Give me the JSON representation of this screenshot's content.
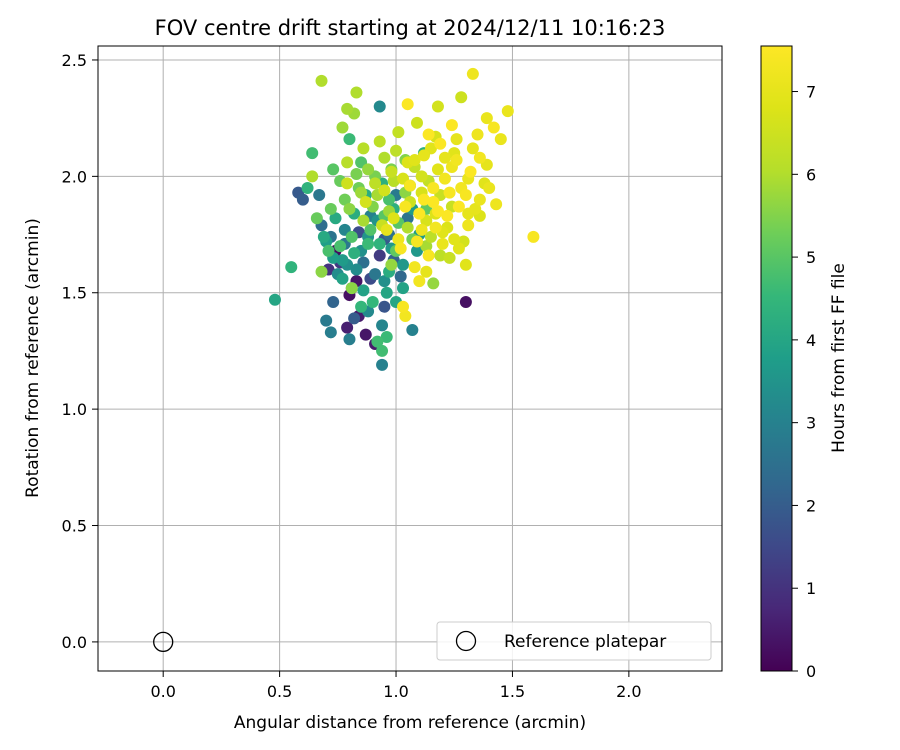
{
  "chart_data": {
    "type": "scatter",
    "title": "FOV centre drift starting at 2024/12/11 10:16:23",
    "xlabel": "Angular distance from reference (arcmin)",
    "ylabel": "Rotation from reference (arcmin)",
    "xlim": [
      -0.28,
      2.4
    ],
    "ylim": [
      -0.125,
      2.56
    ],
    "xticks": [
      "0.0",
      "0.5",
      "1.0",
      "1.5",
      "2.0"
    ],
    "yticks": [
      "0.0",
      "0.5",
      "1.0",
      "1.5",
      "2.0",
      "2.5"
    ],
    "grid": true,
    "legend": {
      "location": "lower-right",
      "entries": [
        "Reference platepar"
      ]
    },
    "colorbar": {
      "label": "Hours from first FF file",
      "colormap": "viridis",
      "min": 0,
      "max": 7.55,
      "ticks": [
        "0",
        "1",
        "2",
        "3",
        "4",
        "5",
        "6",
        "7"
      ]
    },
    "reference_point": {
      "x": 0.0,
      "y": 0.0
    },
    "series": [
      {
        "points": [
          [
            0.74,
            1.68,
            0.2
          ],
          [
            0.8,
            1.49,
            0.3
          ],
          [
            0.83,
            1.55,
            0.4
          ],
          [
            0.87,
            1.32,
            0.4
          ],
          [
            0.91,
            1.28,
            0.5
          ],
          [
            0.84,
            1.4,
            0.5
          ],
          [
            1.3,
            1.46,
            0.3
          ],
          [
            0.79,
            1.35,
            0.6
          ],
          [
            0.71,
            1.6,
            1.0
          ],
          [
            0.76,
            1.63,
            1.2
          ],
          [
            0.84,
            1.76,
            1.6
          ],
          [
            0.93,
            1.66,
            1.2
          ],
          [
            0.89,
            1.56,
            1.6
          ],
          [
            0.95,
            1.44,
            1.8
          ],
          [
            0.6,
            1.9,
            2.0
          ],
          [
            0.58,
            1.93,
            1.9
          ],
          [
            0.73,
            1.46,
            2.2
          ],
          [
            0.82,
            1.39,
            2.0
          ],
          [
            0.81,
            1.52,
            1.8
          ],
          [
            0.95,
            1.73,
            1.9
          ],
          [
            0.99,
            1.64,
            2.1
          ],
          [
            1.02,
            1.57,
            2.3
          ],
          [
            0.68,
            1.79,
            2.4
          ],
          [
            0.72,
            1.74,
            2.6
          ],
          [
            0.78,
            1.71,
            2.7
          ],
          [
            0.86,
            1.63,
            2.5
          ],
          [
            0.91,
            1.58,
            2.7
          ],
          [
            0.97,
            1.75,
            2.5
          ],
          [
            1.05,
            1.82,
            2.6
          ],
          [
            1.0,
            1.92,
            2.8
          ],
          [
            0.67,
            1.92,
            2.7
          ],
          [
            0.7,
            1.38,
            2.8
          ],
          [
            0.72,
            1.33,
            2.9
          ],
          [
            0.8,
            1.3,
            2.9
          ],
          [
            0.94,
            1.19,
            3.0
          ],
          [
            1.07,
            1.34,
            3.0
          ],
          [
            0.94,
            1.36,
            3.1
          ],
          [
            0.88,
            1.42,
            3.2
          ],
          [
            0.93,
            2.3,
            3.2
          ],
          [
            0.75,
            1.58,
            3.3
          ],
          [
            0.79,
            1.62,
            3.4
          ],
          [
            0.85,
            1.68,
            3.4
          ],
          [
            0.88,
            1.74,
            3.5
          ],
          [
            0.92,
            1.81,
            3.5
          ],
          [
            0.98,
            1.69,
            3.6
          ],
          [
            1.03,
            1.62,
            3.6
          ],
          [
            1.07,
            1.86,
            3.7
          ],
          [
            1.1,
            1.75,
            3.7
          ],
          [
            0.7,
            1.72,
            3.8
          ],
          [
            0.73,
            1.65,
            3.8
          ],
          [
            0.77,
            1.56,
            3.9
          ],
          [
            0.86,
            1.51,
            3.9
          ],
          [
            0.96,
            1.5,
            4.0
          ],
          [
            1.0,
            1.46,
            4.0
          ],
          [
            0.69,
            1.74,
            4.1
          ],
          [
            0.74,
            1.82,
            4.1
          ],
          [
            0.82,
            1.84,
            4.2
          ],
          [
            0.87,
            1.92,
            4.2
          ],
          [
            0.94,
            1.97,
            4.3
          ],
          [
            0.99,
            1.86,
            4.3
          ],
          [
            1.12,
            2.1,
            4.3
          ],
          [
            0.55,
            1.61,
            4.4
          ],
          [
            0.48,
            1.47,
            4.0
          ],
          [
            0.62,
            1.95,
            4.4
          ],
          [
            0.85,
            1.44,
            4.5
          ],
          [
            0.9,
            1.46,
            4.5
          ],
          [
            0.96,
            1.31,
            4.6
          ],
          [
            0.94,
            1.25,
            4.7
          ],
          [
            0.92,
            1.29,
            4.7
          ],
          [
            0.8,
            2.16,
            4.6
          ],
          [
            0.64,
            2.1,
            4.7
          ],
          [
            0.71,
            1.68,
            4.8
          ],
          [
            0.76,
            1.7,
            4.8
          ],
          [
            0.81,
            1.74,
            4.9
          ],
          [
            0.89,
            1.77,
            4.9
          ],
          [
            0.95,
            1.83,
            5.0
          ],
          [
            1.01,
            1.8,
            5.0
          ],
          [
            1.06,
            1.96,
            5.1
          ],
          [
            1.13,
            1.86,
            5.1
          ],
          [
            0.66,
            1.82,
            5.2
          ],
          [
            0.72,
            1.86,
            5.2
          ],
          [
            0.78,
            1.9,
            5.3
          ],
          [
            0.84,
            1.95,
            5.3
          ],
          [
            0.91,
            2.0,
            5.4
          ],
          [
            0.98,
            2.03,
            5.4
          ],
          [
            1.04,
            2.07,
            5.5
          ],
          [
            0.68,
            1.59,
            5.6
          ],
          [
            0.81,
            1.52,
            5.6
          ],
          [
            0.98,
            1.62,
            5.7
          ],
          [
            1.16,
            1.54,
            5.7
          ],
          [
            0.77,
            2.21,
            5.8
          ],
          [
            0.82,
            2.27,
            5.8
          ],
          [
            0.79,
            2.29,
            5.9
          ],
          [
            0.83,
            2.36,
            6.0
          ],
          [
            0.68,
            2.41,
            6.0
          ],
          [
            0.64,
            2.0,
            6.0
          ],
          [
            0.79,
            2.06,
            6.1
          ],
          [
            0.86,
            2.12,
            6.1
          ],
          [
            0.93,
            2.15,
            6.2
          ],
          [
            1.0,
            2.11,
            6.2
          ],
          [
            1.08,
            2.04,
            6.3
          ],
          [
            1.14,
            1.98,
            6.3
          ],
          [
            1.19,
            1.92,
            6.4
          ],
          [
            1.24,
            1.87,
            6.4
          ],
          [
            1.28,
            2.34,
            6.5
          ],
          [
            1.18,
            2.3,
            6.6
          ],
          [
            0.79,
            1.97,
            6.5
          ],
          [
            0.87,
            1.89,
            6.6
          ],
          [
            0.95,
            1.94,
            6.6
          ],
          [
            1.03,
            1.99,
            6.7
          ],
          [
            1.11,
            1.93,
            6.7
          ],
          [
            1.17,
            1.84,
            6.8
          ],
          [
            1.22,
            1.78,
            6.8
          ],
          [
            1.3,
            1.62,
            6.9
          ],
          [
            1.27,
            1.69,
            6.9
          ],
          [
            1.21,
            2.08,
            7.0
          ],
          [
            1.26,
            2.16,
            7.0
          ],
          [
            1.33,
            2.12,
            7.0
          ],
          [
            1.39,
            2.05,
            7.0
          ],
          [
            1.45,
            2.16,
            7.1
          ],
          [
            1.48,
            2.28,
            7.1
          ],
          [
            1.39,
            2.25,
            7.1
          ],
          [
            1.33,
            2.44,
            7.2
          ],
          [
            1.36,
            1.9,
            7.1
          ],
          [
            1.4,
            1.95,
            7.1
          ],
          [
            1.43,
            1.88,
            7.2
          ],
          [
            1.31,
            1.79,
            7.2
          ],
          [
            1.04,
            1.4,
            7.3
          ],
          [
            1.03,
            1.44,
            7.4
          ],
          [
            1.59,
            1.74,
            7.4
          ],
          [
            1.05,
            2.31,
            7.5
          ],
          [
            1.14,
            2.18,
            7.5
          ],
          [
            1.19,
            2.14,
            7.5
          ],
          [
            1.24,
            2.22,
            7.5
          ],
          [
            1.32,
            2.02,
            7.5
          ],
          [
            1.06,
            1.96,
            7.4
          ],
          [
            1.12,
            1.9,
            7.5
          ],
          [
            1.18,
            1.85,
            7.5
          ],
          [
            1.09,
            1.72,
            7.4
          ],
          [
            1.14,
            1.66,
            7.4
          ],
          [
            1.02,
            1.69,
            7.4
          ],
          [
            1.08,
            1.61,
            7.3
          ],
          [
            1.1,
            1.55,
            7.3
          ],
          [
            1.01,
            1.73,
            7.2
          ],
          [
            0.96,
            1.77,
            7.0
          ],
          [
            1.08,
            2.07,
            6.9
          ],
          [
            1.15,
            2.12,
            6.9
          ],
          [
            1.24,
            2.04,
            7.2
          ],
          [
            1.28,
            1.95,
            7.3
          ],
          [
            1.34,
            1.86,
            7.0
          ],
          [
            1.2,
            1.71,
            7.1
          ],
          [
            1.13,
            1.59,
            7.0
          ],
          [
            0.92,
            1.92,
            5.9
          ],
          [
            0.99,
            1.98,
            6.1
          ],
          [
            1.06,
            1.89,
            6.5
          ],
          [
            1.13,
            1.81,
            6.7
          ],
          [
            1.2,
            1.76,
            6.9
          ],
          [
            0.88,
            2.03,
            5.7
          ],
          [
            0.95,
            2.08,
            6.0
          ],
          [
            1.01,
            2.19,
            6.3
          ],
          [
            1.09,
            2.23,
            6.5
          ],
          [
            1.17,
            2.17,
            6.7
          ],
          [
            1.25,
            2.1,
            6.9
          ],
          [
            1.31,
            1.99,
            7.1
          ],
          [
            1.36,
            1.83,
            6.8
          ],
          [
            1.29,
            1.72,
            6.6
          ],
          [
            1.23,
            1.65,
            6.4
          ],
          [
            1.15,
            1.74,
            6.2
          ],
          [
            1.05,
            1.78,
            6.0
          ],
          [
            0.97,
            1.85,
            5.8
          ],
          [
            0.9,
            1.87,
            5.5
          ],
          [
            0.83,
            2.01,
            5.4
          ],
          [
            0.76,
            1.98,
            5.2
          ],
          [
            0.73,
            2.03,
            5.0
          ],
          [
            0.85,
            2.06,
            4.9
          ],
          [
            0.93,
            1.71,
            4.4
          ],
          [
            0.97,
            1.59,
            4.2
          ],
          [
            1.03,
            1.52,
            3.9
          ],
          [
            1.09,
            1.68,
            3.6
          ],
          [
            0.83,
            1.6,
            3.3
          ],
          [
            0.78,
            1.77,
            3.1
          ],
          [
            0.89,
            1.83,
            3.0
          ],
          [
            0.97,
            1.9,
            4.8
          ],
          [
            1.04,
            1.93,
            5.6
          ],
          [
            1.11,
            2.0,
            6.6
          ],
          [
            1.18,
            2.03,
            6.9
          ],
          [
            1.23,
            1.93,
            7.4
          ],
          [
            1.27,
            1.87,
            7.5
          ],
          [
            1.3,
            1.92,
            7.4
          ],
          [
            1.16,
            1.95,
            7.4
          ],
          [
            1.21,
            1.99,
            7.3
          ],
          [
            1.26,
            2.07,
            7.3
          ],
          [
            1.35,
            2.18,
            7.2
          ],
          [
            1.42,
            2.21,
            7.4
          ],
          [
            1.36,
            2.08,
            7.3
          ],
          [
            1.16,
            1.89,
            7.5
          ],
          [
            1.1,
            1.84,
            7.5
          ],
          [
            1.04,
            1.87,
            7.4
          ],
          [
            0.99,
            1.82,
            6.8
          ],
          [
            0.94,
            1.79,
            6.4
          ],
          [
            0.86,
            1.81,
            5.9
          ],
          [
            0.8,
            1.86,
            5.6
          ],
          [
            0.85,
            1.93,
            5.8
          ],
          [
            0.91,
            1.97,
            6.2
          ],
          [
            0.98,
            2.02,
            6.4
          ],
          [
            1.05,
            2.06,
            6.8
          ],
          [
            1.12,
            2.09,
            7.0
          ],
          [
            0.88,
            1.71,
            4.6
          ],
          [
            0.82,
            1.67,
            4.3
          ],
          [
            0.77,
            1.64,
            3.7
          ],
          [
            0.95,
            1.55,
            3.4
          ],
          [
            1.0,
            1.68,
            5.1
          ],
          [
            1.07,
            1.73,
            5.3
          ],
          [
            1.13,
            1.7,
            5.9
          ],
          [
            1.19,
            1.66,
            6.2
          ],
          [
            1.25,
            1.73,
            6.9
          ],
          [
            1.31,
            1.84,
            7.0
          ],
          [
            1.38,
            1.97,
            6.9
          ],
          [
            1.22,
            1.83,
            7.5
          ],
          [
            1.17,
            1.78,
            7.3
          ],
          [
            1.11,
            1.77,
            7.2
          ]
        ]
      }
    ]
  }
}
